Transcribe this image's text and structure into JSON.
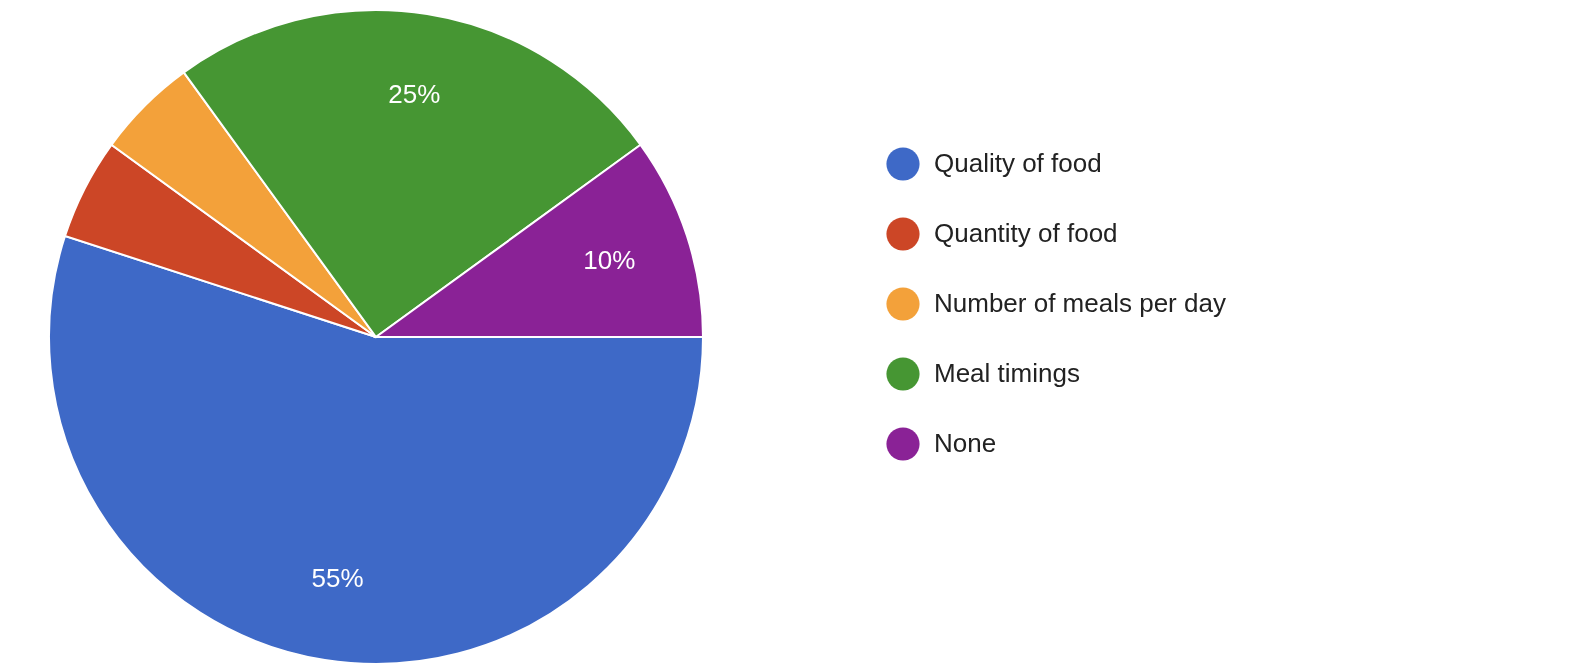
{
  "chart_data": {
    "type": "pie",
    "categories": [
      "Quality of food",
      "Quantity of food",
      "Number of meals per day",
      "Meal timings",
      "None"
    ],
    "values": [
      55,
      5,
      5,
      25,
      10
    ],
    "colors": [
      "#3e69c7",
      "#cc4626",
      "#f3a13a",
      "#469633",
      "#8a2296"
    ],
    "value_labels": [
      "55%",
      null,
      null,
      "25%",
      "10%"
    ],
    "legend": "right"
  }
}
